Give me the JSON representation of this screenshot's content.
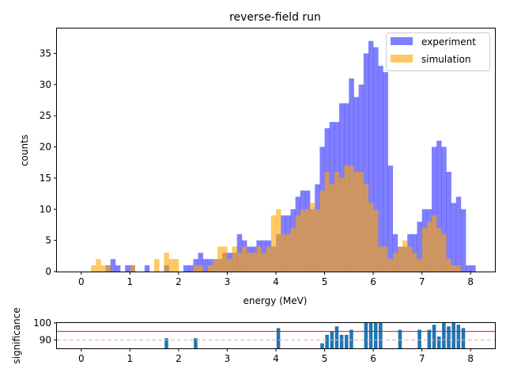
{
  "chart_data": [
    {
      "type": "bar",
      "title": "reverse-field run",
      "xlabel": "energy (MeV)",
      "ylabel": "counts",
      "xlim": [
        -0.5,
        8.5
      ],
      "ylim": [
        0,
        39
      ],
      "xticks": [
        "0",
        "1",
        "2",
        "3",
        "4",
        "5",
        "6",
        "7",
        "8"
      ],
      "yticks": [
        "0",
        "5",
        "10",
        "15",
        "20",
        "25",
        "30",
        "35"
      ],
      "legend_position": "top-right",
      "bin_width": 0.1,
      "series": [
        {
          "name": "experiment",
          "color": "#0000ff",
          "bins": [
            [
              0.5,
              1
            ],
            [
              0.6,
              2
            ],
            [
              0.7,
              1
            ],
            [
              0.9,
              1
            ],
            [
              1.0,
              1
            ],
            [
              1.3,
              1
            ],
            [
              1.7,
              1
            ],
            [
              2.1,
              1
            ],
            [
              2.2,
              1
            ],
            [
              2.3,
              2
            ],
            [
              2.4,
              3
            ],
            [
              2.5,
              2
            ],
            [
              2.6,
              2
            ],
            [
              2.7,
              2
            ],
            [
              2.8,
              2
            ],
            [
              2.9,
              3
            ],
            [
              3.0,
              3
            ],
            [
              3.1,
              3
            ],
            [
              3.2,
              6
            ],
            [
              3.3,
              5
            ],
            [
              3.4,
              4
            ],
            [
              3.5,
              4
            ],
            [
              3.6,
              5
            ],
            [
              3.7,
              5
            ],
            [
              3.8,
              5
            ],
            [
              3.9,
              4
            ],
            [
              4.0,
              6
            ],
            [
              4.1,
              9
            ],
            [
              4.2,
              9
            ],
            [
              4.3,
              10
            ],
            [
              4.4,
              12
            ],
            [
              4.5,
              13
            ],
            [
              4.6,
              13
            ],
            [
              4.7,
              10
            ],
            [
              4.8,
              14
            ],
            [
              4.9,
              20
            ],
            [
              5.0,
              23
            ],
            [
              5.1,
              24
            ],
            [
              5.2,
              24
            ],
            [
              5.3,
              27
            ],
            [
              5.4,
              27
            ],
            [
              5.5,
              31
            ],
            [
              5.6,
              28
            ],
            [
              5.7,
              30
            ],
            [
              5.8,
              35
            ],
            [
              5.9,
              37
            ],
            [
              6.0,
              36
            ],
            [
              6.1,
              33
            ],
            [
              6.2,
              32
            ],
            [
              6.3,
              17
            ],
            [
              6.4,
              6
            ],
            [
              6.5,
              4
            ],
            [
              6.6,
              4
            ],
            [
              6.7,
              6
            ],
            [
              6.8,
              6
            ],
            [
              6.9,
              8
            ],
            [
              7.0,
              10
            ],
            [
              7.1,
              10
            ],
            [
              7.2,
              20
            ],
            [
              7.3,
              21
            ],
            [
              7.4,
              20
            ],
            [
              7.5,
              16
            ],
            [
              7.6,
              11
            ],
            [
              7.7,
              12
            ],
            [
              7.8,
              10
            ],
            [
              7.9,
              1
            ],
            [
              8.0,
              1
            ]
          ]
        },
        {
          "name": "simulation",
          "color": "#ffa500",
          "bins": [
            [
              0.2,
              1
            ],
            [
              0.3,
              2
            ],
            [
              0.4,
              1
            ],
            [
              0.5,
              1
            ],
            [
              1.0,
              1
            ],
            [
              1.5,
              2
            ],
            [
              1.7,
              3
            ],
            [
              1.8,
              2
            ],
            [
              1.9,
              2
            ],
            [
              2.3,
              1
            ],
            [
              2.4,
              1
            ],
            [
              2.6,
              1
            ],
            [
              2.7,
              2
            ],
            [
              2.8,
              4
            ],
            [
              2.9,
              4
            ],
            [
              3.0,
              2
            ],
            [
              3.1,
              4
            ],
            [
              3.2,
              3
            ],
            [
              3.3,
              4
            ],
            [
              3.4,
              3
            ],
            [
              3.5,
              3
            ],
            [
              3.6,
              4
            ],
            [
              3.7,
              3
            ],
            [
              3.8,
              4
            ],
            [
              3.9,
              9
            ],
            [
              4.0,
              10
            ],
            [
              4.1,
              6
            ],
            [
              4.2,
              6
            ],
            [
              4.3,
              7
            ],
            [
              4.4,
              9
            ],
            [
              4.5,
              10
            ],
            [
              4.6,
              10
            ],
            [
              4.7,
              11
            ],
            [
              4.8,
              10
            ],
            [
              4.9,
              13
            ],
            [
              5.0,
              16
            ],
            [
              5.1,
              14
            ],
            [
              5.2,
              16
            ],
            [
              5.3,
              15
            ],
            [
              5.4,
              17
            ],
            [
              5.5,
              17
            ],
            [
              5.6,
              16
            ],
            [
              5.7,
              16
            ],
            [
              5.8,
              14
            ],
            [
              5.9,
              11
            ],
            [
              6.0,
              10
            ],
            [
              6.1,
              4
            ],
            [
              6.2,
              4
            ],
            [
              6.3,
              2
            ],
            [
              6.4,
              3
            ],
            [
              6.5,
              4
            ],
            [
              6.6,
              5
            ],
            [
              6.7,
              4
            ],
            [
              6.8,
              3
            ],
            [
              6.9,
              2
            ],
            [
              7.0,
              7
            ],
            [
              7.1,
              8
            ],
            [
              7.2,
              9
            ],
            [
              7.3,
              7
            ],
            [
              7.4,
              6
            ],
            [
              7.5,
              2
            ],
            [
              7.6,
              1
            ],
            [
              7.7,
              1
            ]
          ]
        }
      ]
    },
    {
      "type": "bar",
      "title": "",
      "xlabel": "",
      "ylabel": "significance",
      "xlim": [
        -0.5,
        8.5
      ],
      "ylim": [
        85,
        100
      ],
      "xticks": [
        "0",
        "1",
        "2",
        "3",
        "4",
        "5",
        "6",
        "7",
        "8"
      ],
      "yticks": [
        "90",
        "100"
      ],
      "threshold_line": {
        "value": 95,
        "color": "#ff0000"
      },
      "reference_line": {
        "value": 90,
        "color": "#f4a6a6",
        "style": "dashed"
      },
      "bar_color": "#1f77b4",
      "bins": [
        [
          1.7,
          91
        ],
        [
          2.3,
          91
        ],
        [
          4.0,
          97
        ],
        [
          4.9,
          88
        ],
        [
          5.0,
          93
        ],
        [
          5.1,
          95
        ],
        [
          5.2,
          98
        ],
        [
          5.3,
          93
        ],
        [
          5.4,
          93
        ],
        [
          5.5,
          96
        ],
        [
          5.8,
          100
        ],
        [
          5.9,
          100
        ],
        [
          6.0,
          100
        ],
        [
          6.1,
          100
        ],
        [
          6.5,
          96
        ],
        [
          6.9,
          96
        ],
        [
          7.1,
          96
        ],
        [
          7.2,
          99
        ],
        [
          7.3,
          92
        ],
        [
          7.4,
          100
        ],
        [
          7.5,
          98
        ],
        [
          7.6,
          100
        ],
        [
          7.7,
          99
        ],
        [
          7.8,
          97
        ]
      ]
    }
  ]
}
